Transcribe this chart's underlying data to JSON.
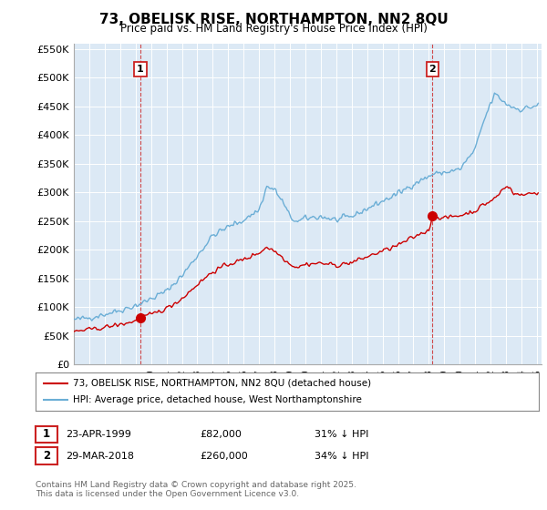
{
  "title": "73, OBELISK RISE, NORTHAMPTON, NN2 8QU",
  "subtitle": "Price paid vs. HM Land Registry's House Price Index (HPI)",
  "background_color": "#ffffff",
  "plot_bg_color": "#dce9f5",
  "grid_color": "#ffffff",
  "hpi_color": "#6baed6",
  "price_color": "#cc0000",
  "vline_color": "#cc2222",
  "ylim": [
    0,
    560000
  ],
  "yticks": [
    0,
    50000,
    100000,
    150000,
    200000,
    250000,
    300000,
    350000,
    400000,
    450000,
    500000,
    550000
  ],
  "ytick_labels": [
    "£0",
    "£50K",
    "£100K",
    "£150K",
    "£200K",
    "£250K",
    "£300K",
    "£350K",
    "£400K",
    "£450K",
    "£500K",
    "£550K"
  ],
  "sale1_date": 1999.31,
  "sale1_price": 82000,
  "sale1_label": "1",
  "sale1_display": "23-APR-1999",
  "sale1_amount": "£82,000",
  "sale1_hpi": "31% ↓ HPI",
  "sale2_date": 2018.24,
  "sale2_price": 260000,
  "sale2_label": "2",
  "sale2_display": "29-MAR-2018",
  "sale2_amount": "£260,000",
  "sale2_hpi": "34% ↓ HPI",
  "legend_line1": "73, OBELISK RISE, NORTHAMPTON, NN2 8QU (detached house)",
  "legend_line2": "HPI: Average price, detached house, West Northamptonshire",
  "footer": "Contains HM Land Registry data © Crown copyright and database right 2025.\nThis data is licensed under the Open Government Licence v3.0."
}
